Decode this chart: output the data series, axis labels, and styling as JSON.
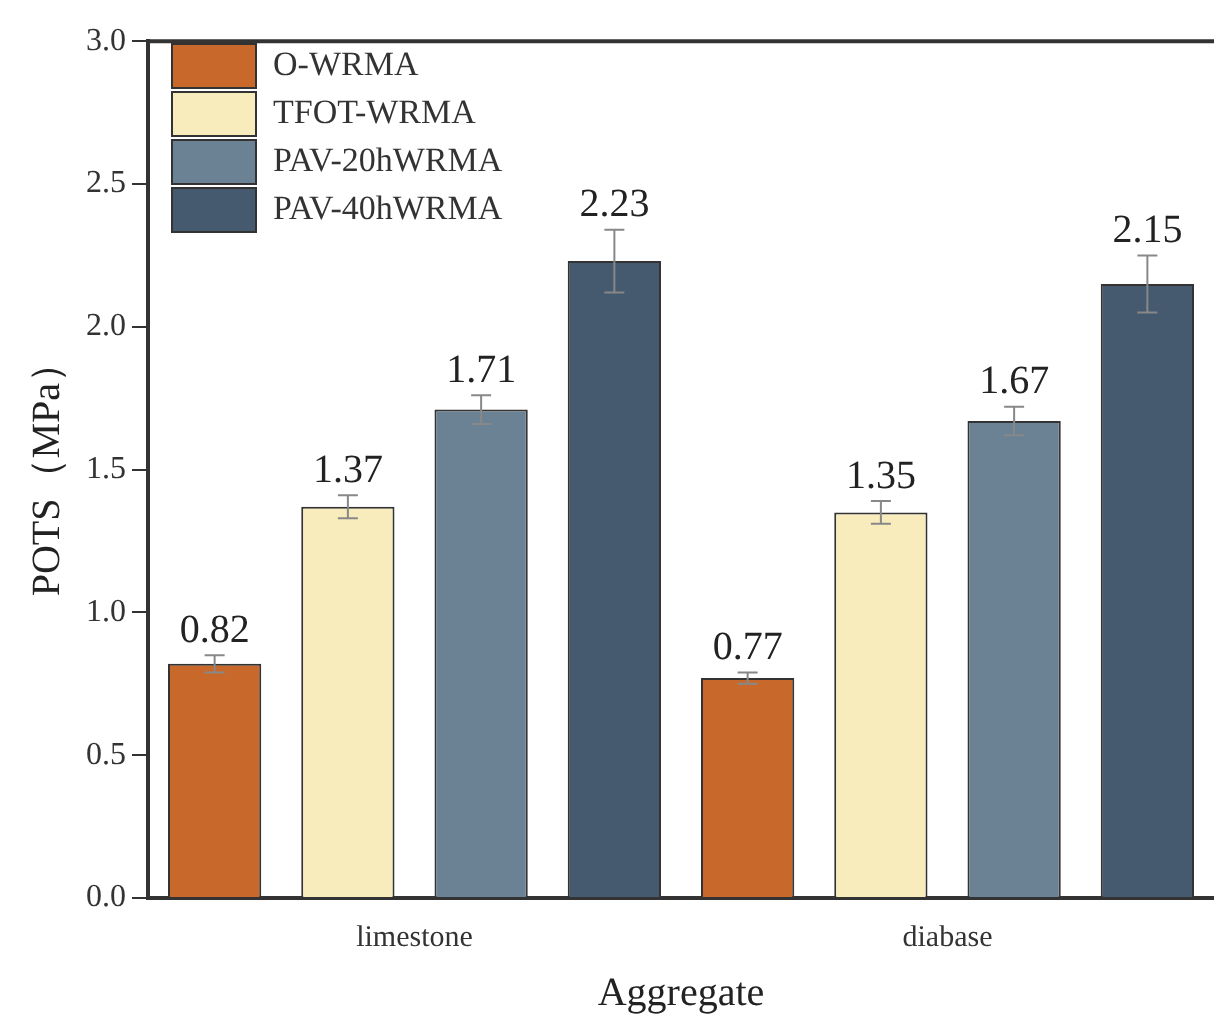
{
  "chart_data": {
    "type": "bar",
    "xlabel": "Aggregate",
    "ylabel": "POTS（MPa）",
    "categories": [
      "limestone",
      "diabase"
    ],
    "series": [
      {
        "name": "O-WRMA",
        "color": "#c8682b",
        "values": [
          0.82,
          0.77
        ],
        "errors": [
          0.03,
          0.02
        ]
      },
      {
        "name": "TFOT-WRMA",
        "color": "#f8ecbd",
        "values": [
          1.37,
          1.35
        ],
        "errors": [
          0.04,
          0.04
        ]
      },
      {
        "name": "PAV-20hWRMA",
        "color": "#6a8293",
        "values": [
          1.71,
          1.67
        ],
        "errors": [
          0.05,
          0.05
        ]
      },
      {
        "name": "PAV-40hWRMA",
        "color": "#45596f",
        "values": [
          2.23,
          2.15
        ],
        "errors": [
          0.11,
          0.1
        ]
      }
    ],
    "ylim": [
      0,
      3
    ],
    "yticks": [
      {
        "value": 0,
        "label": "0.0"
      },
      {
        "value": 0.5,
        "label": "0.5"
      },
      {
        "value": 1,
        "label": "1.0"
      },
      {
        "value": 1.5,
        "label": "1.5"
      },
      {
        "value": 2,
        "label": "2.0"
      },
      {
        "value": 2.5,
        "label": "2.5"
      },
      {
        "value": 3,
        "label": "3.0"
      }
    ],
    "data_labels": true,
    "legend": "top left",
    "grid": false
  }
}
